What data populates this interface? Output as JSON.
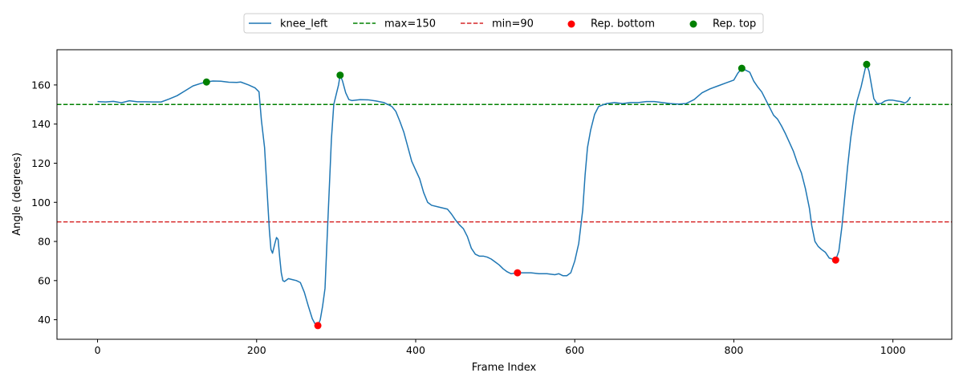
{
  "chart_data": {
    "type": "line",
    "xlabel": "Frame Index",
    "ylabel": "Angle (degrees)",
    "xlim": [
      -51,
      1074
    ],
    "ylim": [
      30,
      178
    ],
    "xticks": [
      0,
      200,
      400,
      600,
      800,
      1000
    ],
    "yticks": [
      40,
      60,
      80,
      100,
      120,
      140,
      160
    ],
    "legend_position": "top-center",
    "grid": false,
    "colors": {
      "line": "#1f77b4",
      "max": "#008000",
      "min": "#d62728",
      "bottom": "#ff0000",
      "top": "#008000"
    },
    "legend": [
      "knee_left",
      "max=150",
      "min=90",
      "Rep. bottom",
      "Rep. top"
    ],
    "series": [
      {
        "name": "knee_left",
        "points": [
          [
            0,
            151.5
          ],
          [
            10,
            151.3
          ],
          [
            20,
            151.6
          ],
          [
            30,
            150.9
          ],
          [
            40,
            151.9
          ],
          [
            50,
            151.4
          ],
          [
            60,
            151.4
          ],
          [
            70,
            151.3
          ],
          [
            80,
            151.3
          ],
          [
            90,
            152.8
          ],
          [
            100,
            154.5
          ],
          [
            110,
            157.0
          ],
          [
            120,
            159.5
          ],
          [
            130,
            160.8
          ],
          [
            137,
            161.5
          ],
          [
            145,
            162.0
          ],
          [
            155,
            161.9
          ],
          [
            165,
            161.4
          ],
          [
            175,
            161.3
          ],
          [
            180,
            161.5
          ],
          [
            190,
            160.0
          ],
          [
            198,
            158.5
          ],
          [
            203,
            156.5
          ],
          [
            206,
            142
          ],
          [
            210,
            128
          ],
          [
            214,
            100
          ],
          [
            216,
            86
          ],
          [
            218,
            76
          ],
          [
            220,
            74
          ],
          [
            223,
            79
          ],
          [
            225,
            82
          ],
          [
            227,
            81
          ],
          [
            229,
            72
          ],
          [
            231,
            64
          ],
          [
            233,
            60
          ],
          [
            235,
            59.5
          ],
          [
            240,
            61
          ],
          [
            245,
            60.5
          ],
          [
            250,
            60
          ],
          [
            255,
            59
          ],
          [
            260,
            54
          ],
          [
            265,
            47
          ],
          [
            270,
            40.5
          ],
          [
            274,
            37.5
          ],
          [
            277,
            37
          ],
          [
            280,
            40
          ],
          [
            283,
            47
          ],
          [
            286,
            56
          ],
          [
            289,
            85
          ],
          [
            292,
            113
          ],
          [
            294,
            132
          ],
          [
            297,
            150
          ],
          [
            300,
            155
          ],
          [
            303,
            160
          ],
          [
            305,
            165
          ],
          [
            308,
            162
          ],
          [
            312,
            156
          ],
          [
            316,
            152.5
          ],
          [
            320,
            152
          ],
          [
            330,
            152.5
          ],
          [
            340,
            152.4
          ],
          [
            350,
            151.8
          ],
          [
            360,
            151
          ],
          [
            370,
            149
          ],
          [
            375,
            146.5
          ],
          [
            380,
            141.5
          ],
          [
            385,
            136
          ],
          [
            390,
            128.5
          ],
          [
            395,
            121
          ],
          [
            400,
            116.5
          ],
          [
            405,
            112
          ],
          [
            410,
            105
          ],
          [
            415,
            100
          ],
          [
            420,
            98.5
          ],
          [
            430,
            97.5
          ],
          [
            440,
            96.5
          ],
          [
            445,
            94
          ],
          [
            450,
            91
          ],
          [
            455,
            88.5
          ],
          [
            460,
            86.5
          ],
          [
            465,
            82.5
          ],
          [
            470,
            76.5
          ],
          [
            475,
            73.5
          ],
          [
            480,
            72.5
          ],
          [
            485,
            72.5
          ],
          [
            490,
            72
          ],
          [
            495,
            71
          ],
          [
            500,
            69.5
          ],
          [
            505,
            68
          ],
          [
            510,
            66
          ],
          [
            515,
            64.5
          ],
          [
            520,
            63.5
          ],
          [
            528,
            64
          ],
          [
            535,
            64
          ],
          [
            545,
            64
          ],
          [
            555,
            63.5
          ],
          [
            565,
            63.5
          ],
          [
            575,
            63
          ],
          [
            580,
            63.5
          ],
          [
            585,
            62.5
          ],
          [
            590,
            62.5
          ],
          [
            595,
            64
          ],
          [
            600,
            70
          ],
          [
            605,
            79
          ],
          [
            610,
            96
          ],
          [
            613,
            114
          ],
          [
            616,
            128
          ],
          [
            620,
            137
          ],
          [
            625,
            145
          ],
          [
            630,
            149
          ],
          [
            640,
            150.5
          ],
          [
            650,
            151
          ],
          [
            660,
            150.5
          ],
          [
            670,
            151
          ],
          [
            680,
            151
          ],
          [
            690,
            151.5
          ],
          [
            700,
            151.5
          ],
          [
            710,
            151
          ],
          [
            720,
            150.5
          ],
          [
            730,
            150.2
          ],
          [
            740,
            150.5
          ],
          [
            750,
            152.5
          ],
          [
            760,
            156
          ],
          [
            770,
            158
          ],
          [
            780,
            159.5
          ],
          [
            790,
            161
          ],
          [
            800,
            162.5
          ],
          [
            805,
            166
          ],
          [
            810,
            168.5
          ],
          [
            815,
            167.5
          ],
          [
            820,
            166.5
          ],
          [
            825,
            162
          ],
          [
            830,
            159
          ],
          [
            835,
            156.5
          ],
          [
            840,
            152.5
          ],
          [
            845,
            148.5
          ],
          [
            850,
            144.5
          ],
          [
            855,
            142.5
          ],
          [
            860,
            139
          ],
          [
            865,
            135
          ],
          [
            870,
            130.5
          ],
          [
            875,
            126
          ],
          [
            880,
            120
          ],
          [
            885,
            115
          ],
          [
            890,
            107
          ],
          [
            895,
            97
          ],
          [
            898,
            88
          ],
          [
            902,
            80
          ],
          [
            906,
            77.5
          ],
          [
            910,
            76
          ],
          [
            915,
            74.5
          ],
          [
            920,
            71.5
          ],
          [
            928,
            70.5
          ],
          [
            932,
            75
          ],
          [
            936,
            88
          ],
          [
            940,
            105
          ],
          [
            943,
            118
          ],
          [
            947,
            133
          ],
          [
            951,
            144
          ],
          [
            955,
            152
          ],
          [
            960,
            159
          ],
          [
            965,
            168
          ],
          [
            967,
            170.5
          ],
          [
            970,
            167
          ],
          [
            973,
            160
          ],
          [
            976,
            153
          ],
          [
            980,
            150.5
          ],
          [
            985,
            150.5
          ],
          [
            990,
            151.8
          ],
          [
            995,
            152.3
          ],
          [
            1000,
            152.2
          ],
          [
            1005,
            151.8
          ],
          [
            1010,
            151.5
          ],
          [
            1015,
            150.8
          ],
          [
            1018,
            151.5
          ],
          [
            1020,
            152.5
          ],
          [
            1022,
            153.8
          ]
        ]
      }
    ],
    "hlines": [
      {
        "name": "max=150",
        "y": 150
      },
      {
        "name": "min=90",
        "y": 90
      }
    ],
    "rep_bottom": [
      [
        277,
        37
      ],
      [
        528,
        64
      ],
      [
        928,
        70.5
      ]
    ],
    "rep_top": [
      [
        137,
        161.5
      ],
      [
        305,
        165
      ],
      [
        810,
        168.5
      ],
      [
        967,
        170.5
      ]
    ]
  }
}
